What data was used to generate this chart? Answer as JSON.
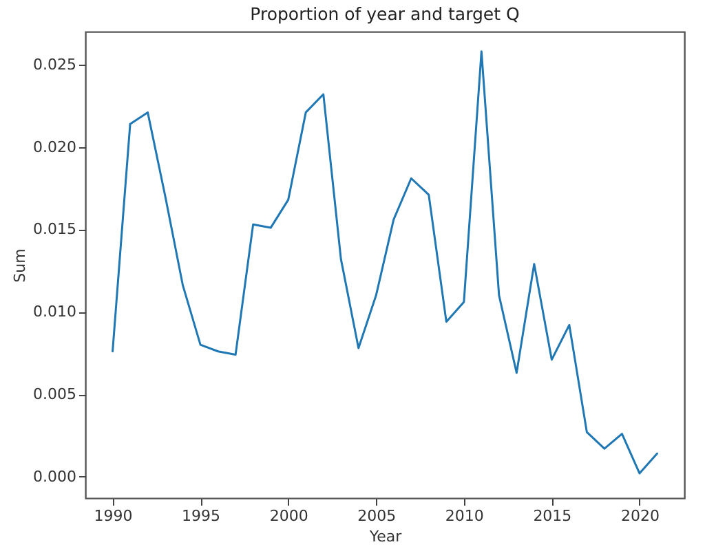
{
  "chart_data": {
    "type": "line",
    "title": "Proportion of year and target Q",
    "xlabel": "Year",
    "ylabel": "Sum",
    "x": [
      1990,
      1991,
      1992,
      1993,
      1994,
      1995,
      1996,
      1997,
      1998,
      1999,
      2000,
      2001,
      2002,
      2003,
      2004,
      2005,
      2006,
      2007,
      2008,
      2009,
      2010,
      2011,
      2012,
      2013,
      2014,
      2015,
      2016,
      2017,
      2018,
      2019,
      2020,
      2021
    ],
    "series": [
      {
        "color": "#1f77b4",
        "values": [
          0.0076,
          0.0214,
          0.0221,
          0.017,
          0.0116,
          0.008,
          0.0076,
          0.0074,
          0.0153,
          0.0151,
          0.0168,
          0.0221,
          0.0232,
          0.0132,
          0.0078,
          0.011,
          0.0156,
          0.0181,
          0.0171,
          0.0094,
          0.0106,
          0.0258,
          0.011,
          0.0063,
          0.0129,
          0.0071,
          0.0092,
          0.0027,
          0.0017,
          0.0026,
          0.0002,
          0.0014
        ]
      }
    ],
    "xlim": [
      1988.45,
      2022.55
    ],
    "xticks": [
      1990,
      1995,
      2000,
      2005,
      2010,
      2015,
      2020
    ],
    "ylim": [
      -0.0013,
      0.027
    ],
    "yticks": [
      {
        "value": 0,
        "label": "0.000"
      },
      {
        "value": 0.005,
        "label": "0.005"
      },
      {
        "value": 0.01,
        "label": "0.010"
      },
      {
        "value": 0.015,
        "label": "0.015"
      },
      {
        "value": 0.02,
        "label": "0.020"
      },
      {
        "value": 0.025,
        "label": "0.025"
      }
    ],
    "grid": false
  }
}
